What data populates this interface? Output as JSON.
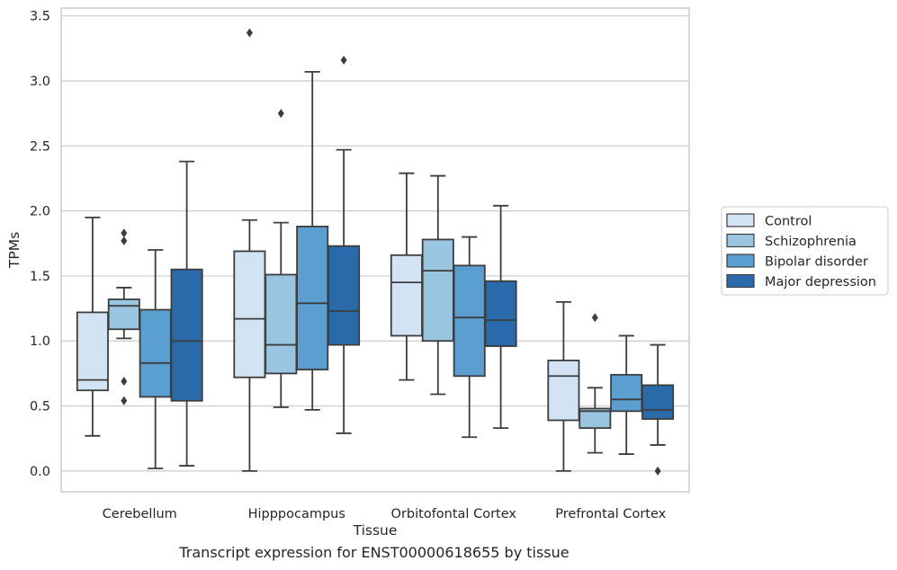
{
  "caption": "Transcript expression for ENST00000618655 by tissue",
  "chart_data": {
    "type": "box",
    "xlabel": "Tissue",
    "ylabel": "TPMs",
    "categories": [
      "Cerebellum",
      "Hipppocampus",
      "Orbitofontal Cortex",
      "Prefrontal Cortex"
    ],
    "ylim": [
      -0.16,
      3.56
    ],
    "yticks": [
      "0.0",
      "0.5",
      "1.0",
      "1.5",
      "2.0",
      "2.5",
      "3.0",
      "3.5"
    ],
    "grid": true,
    "legend_position": "outside-right",
    "series": [
      {
        "name": "Control",
        "color": "#d2e3f3",
        "boxes": [
          {
            "whisker_low": 0.27,
            "q1": 0.62,
            "median": 0.7,
            "q3": 1.22,
            "whisker_high": 1.95,
            "outliers": []
          },
          {
            "whisker_low": 0.0,
            "q1": 0.72,
            "median": 1.17,
            "q3": 1.69,
            "whisker_high": 1.93,
            "outliers": [
              3.37
            ]
          },
          {
            "whisker_low": 0.7,
            "q1": 1.04,
            "median": 1.45,
            "q3": 1.66,
            "whisker_high": 2.29,
            "outliers": []
          },
          {
            "whisker_low": 0.0,
            "q1": 0.39,
            "median": 0.73,
            "q3": 0.85,
            "whisker_high": 1.3,
            "outliers": []
          }
        ]
      },
      {
        "name": "Schizophrenia",
        "color": "#9ac5e0",
        "boxes": [
          {
            "whisker_low": 1.02,
            "q1": 1.09,
            "median": 1.27,
            "q3": 1.32,
            "whisker_high": 1.41,
            "outliers": [
              1.83,
              1.77,
              0.69,
              0.54
            ]
          },
          {
            "whisker_low": 0.49,
            "q1": 0.75,
            "median": 0.97,
            "q3": 1.51,
            "whisker_high": 1.91,
            "outliers": [
              2.75
            ]
          },
          {
            "whisker_low": 0.59,
            "q1": 1.0,
            "median": 1.54,
            "q3": 1.78,
            "whisker_high": 2.27,
            "outliers": []
          },
          {
            "whisker_low": 0.14,
            "q1": 0.33,
            "median": 0.46,
            "q3": 0.48,
            "whisker_high": 0.64,
            "outliers": [
              1.18
            ]
          }
        ]
      },
      {
        "name": "Bipolar disorder",
        "color": "#5a9fcf",
        "boxes": [
          {
            "whisker_low": 0.02,
            "q1": 0.57,
            "median": 0.83,
            "q3": 1.24,
            "whisker_high": 1.7,
            "outliers": []
          },
          {
            "whisker_low": 0.47,
            "q1": 0.78,
            "median": 1.29,
            "q3": 1.88,
            "whisker_high": 3.07,
            "outliers": []
          },
          {
            "whisker_low": 0.26,
            "q1": 0.73,
            "median": 1.18,
            "q3": 1.58,
            "whisker_high": 1.8,
            "outliers": []
          },
          {
            "whisker_low": 0.13,
            "q1": 0.46,
            "median": 0.55,
            "q3": 0.74,
            "whisker_high": 1.04,
            "outliers": []
          }
        ]
      },
      {
        "name": "Major depression",
        "color": "#2a6aab",
        "boxes": [
          {
            "whisker_low": 0.04,
            "q1": 0.54,
            "median": 1.0,
            "q3": 1.55,
            "whisker_high": 2.38,
            "outliers": []
          },
          {
            "whisker_low": 0.29,
            "q1": 0.97,
            "median": 1.23,
            "q3": 1.73,
            "whisker_high": 2.47,
            "outliers": [
              3.16
            ]
          },
          {
            "whisker_low": 0.33,
            "q1": 0.96,
            "median": 1.16,
            "q3": 1.46,
            "whisker_high": 2.04,
            "outliers": []
          },
          {
            "whisker_low": 0.2,
            "q1": 0.4,
            "median": 0.47,
            "q3": 0.66,
            "whisker_high": 0.97,
            "outliers": [
              0.0
            ]
          }
        ]
      }
    ]
  }
}
